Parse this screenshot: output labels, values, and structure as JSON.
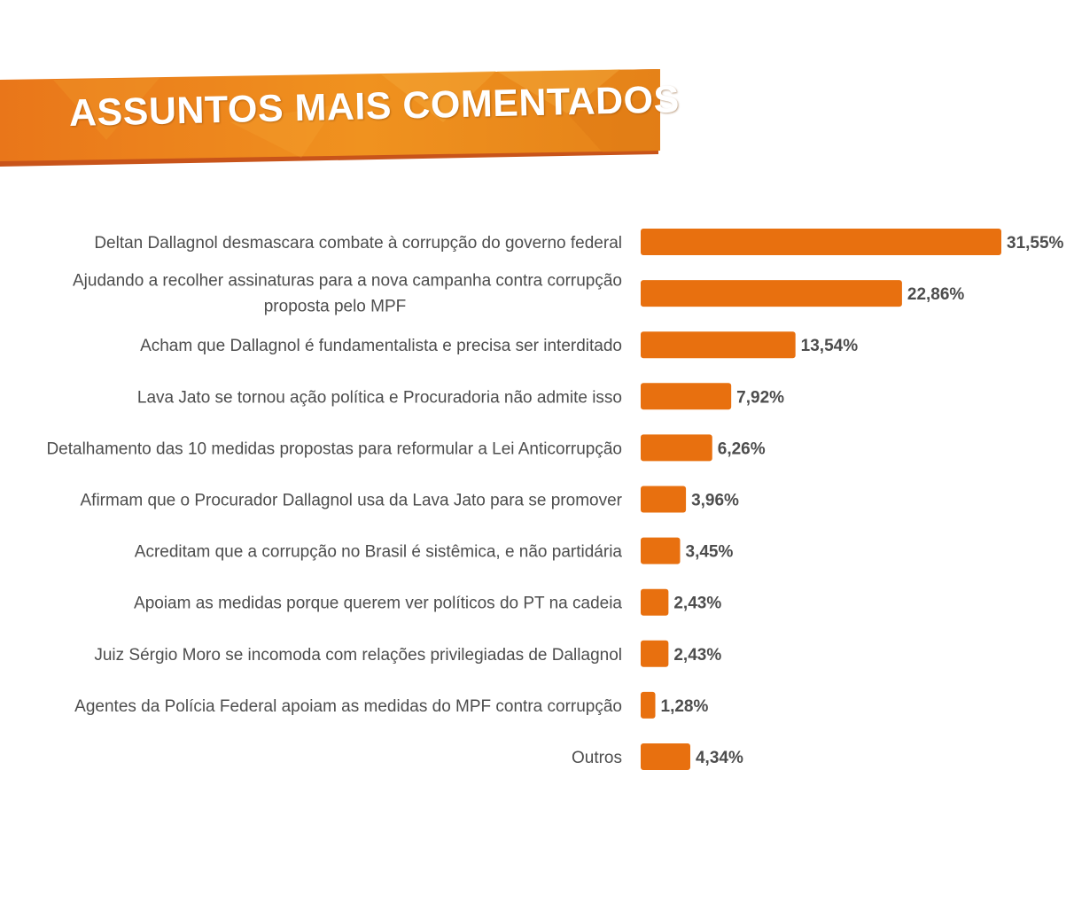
{
  "header": {
    "title": "ASSUNTOS MAIS COMENTADOS"
  },
  "colors": {
    "bar": "#E8700F",
    "banner_main": "#EE8A1E",
    "banner_shadow": "#C8541A",
    "text": "#4D4D4D"
  },
  "chart_data": {
    "type": "bar",
    "orientation": "horizontal",
    "title": "ASSUNTOS MAIS COMENTADOS",
    "categories": [
      "Deltan Dallagnol desmascara combate à corrupção do governo federal",
      "Ajudando a recolher assinaturas para a nova campanha contra corrupção proposta pelo MPF",
      "Acham que Dallagnol é fundamentalista e precisa ser interditado",
      "Lava Jato se tornou ação política e Procuradoria não admite isso",
      "Detalhamento das 10 medidas propostas para reformular a Lei Anticorrupção",
      "Afirmam que o Procurador Dallagnol usa da Lava Jato para se promover",
      "Acreditam que a corrupção no Brasil é sistêmica, e não partidária",
      "Apoiam as medidas porque querem ver políticos do PT na cadeia",
      "Juiz Sérgio Moro se incomoda com relações privilegiadas de Dallagnol",
      "Agentes da Polícia Federal apoiam as medidas do MPF contra corrupção",
      "Outros"
    ],
    "category_lines": [
      [
        "Deltan Dallagnol desmascara combate à corrupção do governo federal"
      ],
      [
        "Ajudando a recolher assinaturas para a nova campanha contra corrupção",
        "proposta pelo MPF"
      ],
      [
        "Acham que Dallagnol é fundamentalista e precisa ser interditado"
      ],
      [
        "Lava Jato se tornou ação política e Procuradoria não admite isso"
      ],
      [
        "Detalhamento das 10 medidas propostas para reformular a Lei Anticorrupção"
      ],
      [
        "Afirmam que o Procurador Dallagnol usa da Lava Jato para se promover"
      ],
      [
        "Acreditam que a corrupção no Brasil é sistêmica, e não partidária"
      ],
      [
        "Apoiam as medidas porque querem ver políticos do PT na cadeia"
      ],
      [
        "Juiz Sérgio Moro se incomoda com relações privilegiadas de Dallagnol"
      ],
      [
        "Agentes da Polícia Federal apoiam as medidas do MPF contra corrupção"
      ],
      [
        "Outros"
      ]
    ],
    "values": [
      31.55,
      22.86,
      13.54,
      7.92,
      6.26,
      3.96,
      3.45,
      2.43,
      2.43,
      1.28,
      4.34
    ],
    "value_labels": [
      "31,55%",
      "22,86%",
      "13,54%",
      "7,92%",
      "6,26%",
      "3,96%",
      "3,45%",
      "2,43%",
      "2,43%",
      "1,28%",
      "4,34%"
    ],
    "unit": "%",
    "grid": false,
    "legend": "none",
    "xlim": [
      0,
      31.55
    ]
  }
}
